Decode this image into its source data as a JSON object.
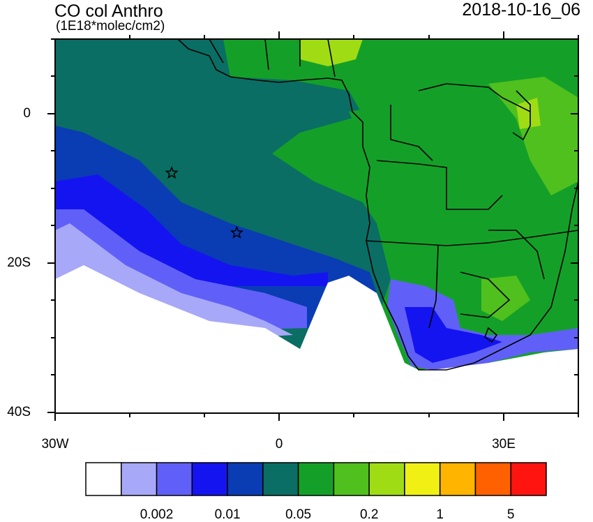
{
  "map": {
    "title": "CO col Anthro",
    "units": "(1E18*molec/cm2)",
    "datetime": "2018-10-16_06",
    "y_axis_labels": [
      "0",
      "20S",
      "40S"
    ],
    "x_axis_labels": [
      "30W",
      "0",
      "30E"
    ],
    "extent": {
      "lon_min": -30,
      "lon_max": 40,
      "lat_min": -40,
      "lat_max": 10
    },
    "markers": [
      {
        "type": "star",
        "lon": -14.4,
        "lat": -7.9
      },
      {
        "type": "star",
        "lon": -5.7,
        "lat": -15.9
      }
    ]
  },
  "colorbar": {
    "colors": [
      "#ffffff",
      "#a8a8f8",
      "#6060f8",
      "#1414f0",
      "#0a3cb4",
      "#0a6e64",
      "#14a028",
      "#50c01e",
      "#a0dc14",
      "#f0f014",
      "#ffb400",
      "#ff6000",
      "#ff1410"
    ],
    "labels": [
      {
        "text": "0.002",
        "boundary": 2
      },
      {
        "text": "0.01",
        "boundary": 4
      },
      {
        "text": "0.05",
        "boundary": 6
      },
      {
        "text": "0.2",
        "boundary": 8
      },
      {
        "text": "1",
        "boundary": 10
      },
      {
        "text": "5",
        "boundary": 12
      }
    ]
  }
}
